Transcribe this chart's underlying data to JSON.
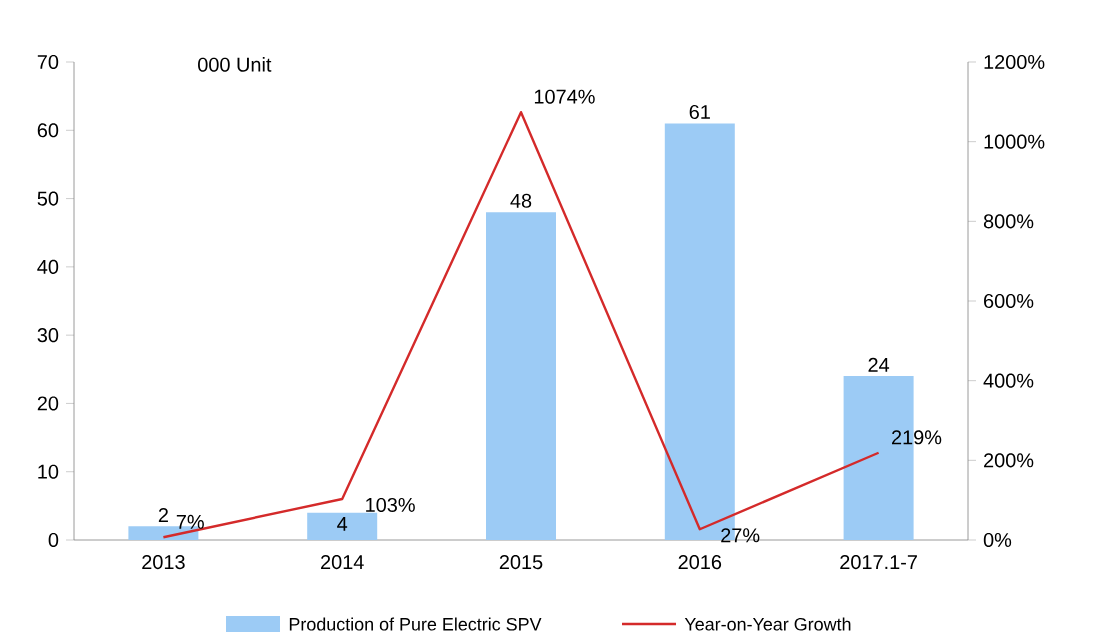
{
  "chart_data": {
    "type": "bar",
    "categories": [
      "2013",
      "2014",
      "2015",
      "2016",
      "2017.1-7"
    ],
    "series": [
      {
        "name": "Production of Pure Electric SPV",
        "color": "#9ccbf5",
        "values": [
          2,
          4,
          48,
          61,
          24
        ],
        "value_labels": [
          "2",
          "4",
          "48",
          "61",
          "24"
        ]
      },
      {
        "type": "line",
        "axis": "y2",
        "name": "Year-on-Year Growth",
        "color": "#d42a2a",
        "values": [
          7,
          103,
          1074,
          27,
          219
        ],
        "value_labels": [
          "7%",
          "103%",
          "1074%",
          "27%",
          "219%"
        ]
      }
    ],
    "ylim": [
      0,
      70
    ],
    "yticks": [
      0,
      10,
      20,
      30,
      40,
      50,
      60,
      70
    ],
    "y2lim": [
      0,
      1200
    ],
    "y2ticks": [
      {
        "value": 0,
        "label": "0%"
      },
      {
        "value": 200,
        "label": "200%"
      },
      {
        "value": 400,
        "label": "400%"
      },
      {
        "value": 600,
        "label": "600%"
      },
      {
        "value": 800,
        "label": "800%"
      },
      {
        "value": 1000,
        "label": "1000%"
      },
      {
        "value": 1200,
        "label": "1200%"
      }
    ],
    "annotations": [
      "000 Unit"
    ],
    "legend": "bottom",
    "marker": "none",
    "line_style": "solid",
    "grid": false
  }
}
